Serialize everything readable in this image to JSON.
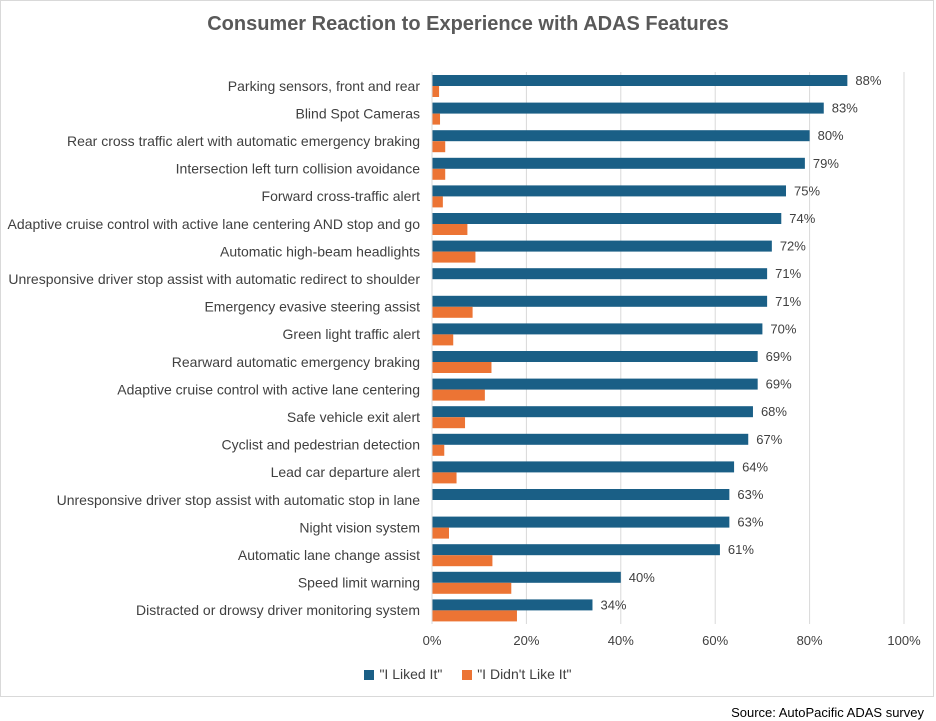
{
  "colors": {
    "liked": "#1a5f86",
    "disliked": "#ec7434",
    "grid": "#d9d9d9",
    "text": "#404040"
  },
  "chart_data": {
    "type": "bar",
    "orientation": "horizontal",
    "title": "Consumer Reaction to Experience with ADAS Features",
    "source": "Source: AutoPacific ADAS survey",
    "categories": [
      "Parking sensors, front and rear",
      "Blind Spot Cameras",
      "Rear cross traffic alert with automatic emergency braking",
      "Intersection left turn collision avoidance",
      "Forward cross-traffic alert",
      "Adaptive cruise control with active lane centering AND stop and go",
      "Automatic high-beam headlights",
      "Unresponsive driver stop assist with automatic redirect to shoulder",
      "Emergency evasive steering assist",
      "Green light traffic alert",
      "Rearward automatic emergency braking",
      "Adaptive cruise control with active lane centering",
      "Safe vehicle exit alert",
      "Cyclist and pedestrian detection",
      "Lead car departure alert",
      "Unresponsive driver stop assist with automatic stop in lane",
      "Night vision system",
      "Automatic lane change assist",
      "Speed limit warning",
      "Distracted or drowsy driver monitoring system"
    ],
    "series": [
      {
        "name": "\"I Liked It\"",
        "values": [
          88,
          83,
          80,
          79,
          75,
          74,
          72,
          71,
          71,
          70,
          69,
          69,
          68,
          67,
          64,
          63,
          63,
          61,
          40,
          34
        ]
      },
      {
        "name": "\"I Didn't Like It\"",
        "values": [
          1.5,
          1.7,
          2.8,
          2.8,
          2.3,
          7.5,
          9.2,
          0,
          8.6,
          4.5,
          12.6,
          11.2,
          7,
          2.6,
          5.2,
          0,
          3.6,
          12.8,
          16.8,
          18
        ]
      }
    ],
    "data_labels": [
      "88%",
      "83%",
      "80%",
      "79%",
      "75%",
      "74%",
      "72%",
      "71%",
      "71%",
      "70%",
      "69%",
      "69%",
      "68%",
      "67%",
      "64%",
      "63%",
      "63%",
      "61%",
      "40%",
      "34%"
    ],
    "xticks": [
      "0%",
      "20%",
      "40%",
      "60%",
      "80%",
      "100%"
    ],
    "xlim": [
      0,
      100
    ],
    "grid": true,
    "legend_position": "bottom"
  }
}
